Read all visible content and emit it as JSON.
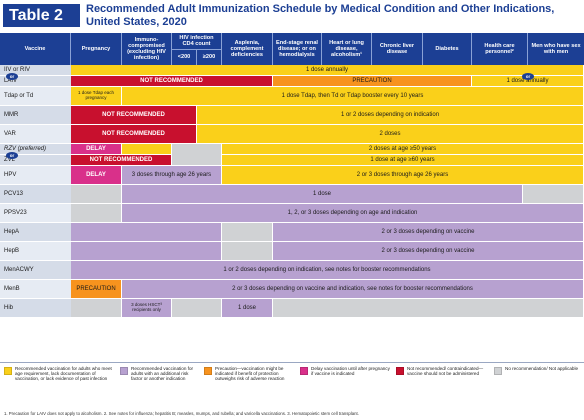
{
  "header": {
    "table_label": "Table 2",
    "title": "Recommended Adult Immunization Schedule by Medical Condition and Other Indications, United States, 2020"
  },
  "columns": {
    "vaccine": "Vaccine",
    "pregnancy": "Pregnancy",
    "immuno": "Immuno-compromised (excluding HIV infection)",
    "hiv": "HIV infection CD4 count",
    "hiv_lt200": "<200",
    "hiv_ge200": "≥200",
    "asplenia": "Asplenia, complement deficiencies",
    "renal": "End-stage renal disease; or on hemodialysis",
    "heart": "Heart or lung disease, alcoholism¹",
    "liver": "Chronic liver disease",
    "diabetes": "Diabetes",
    "hcp": "Health care personnel²",
    "msm": "Men who have sex with men"
  },
  "vaccines": {
    "iiv": "IIV or RIV",
    "laiv": "LAIV",
    "tdap": "Tdap or Td",
    "mmr": "MMR",
    "var": "VAR",
    "rzv": "RZV (preferred)",
    "zvl": "ZVL",
    "hpv": "HPV",
    "pcv13": "PCV13",
    "ppsv23": "PPSV23",
    "hepa": "HepA",
    "hepb": "HepB",
    "menacwy": "MenACWY",
    "menb": "MenB",
    "hib": "Hib",
    "or": "or"
  },
  "cells": {
    "dose_annually": "1 dose annually",
    "not_recommended": "NOT RECOMMENDED",
    "precaution": "PRECAUTION",
    "tdap_pregnancy": "1 dose Tdap each pregnancy",
    "tdap_booster": "1 dose Tdap, then Td or Tdap booster every 10 years",
    "mmr_doses": "1 or 2 doses depending on indication",
    "var_doses": "2 doses",
    "delay": "DELAY",
    "rzv_doses": "2 doses at age ≥50 years",
    "zvl_doses": "1 dose at age ≥60 years",
    "hpv_26": "3 doses through age 26 years",
    "hpv_2or3": "2 or 3 doses through age 26 years",
    "pcv13_dose": "1 dose",
    "ppsv23_doses": "1, 2, or 3 doses depending on age and indication",
    "hep_doses": "2 or 3 doses depending on vaccine",
    "menacwy_doses": "1 or 2 doses depending on indication, see notes for booster recommendations",
    "menb_doses": "2 or 3 doses depending on vaccine and indication, see notes for booster recommendations",
    "hib_hsct": "3 doses HSCT³ recipients only",
    "hib_dose": "1 dose"
  },
  "legend": [
    {
      "color": "#fad01a",
      "text": "Recommended vaccination for adults who meet age requirement, lack documentation of vaccination, or lack evidence of past infection"
    },
    {
      "color": "#b7a1d0",
      "text": "Recommended vaccination for adults with an additional risk factor or another indication"
    },
    {
      "color": "#f7931e",
      "text": "Precaution—vaccination might be indicated if benefit of protection outweighs risk of adverse reaction"
    },
    {
      "color": "#d9308a",
      "text": "Delay vaccination until after pregnancy if vaccine is indicated"
    },
    {
      "color": "#c8102e",
      "text": "Not recommended/ contraindicated—vaccine should not be administered"
    },
    {
      "color": "#d0d2d4",
      "text": "No recommendation/ Not applicable"
    }
  ],
  "footnote": "1. Precaution for LAIV does not apply to alcoholism. 2. See notes for influenza; hepatitis B; measles, mumps, and rubella; and varicella vaccinations. 3. Hematopoietic stem cell transplant."
}
